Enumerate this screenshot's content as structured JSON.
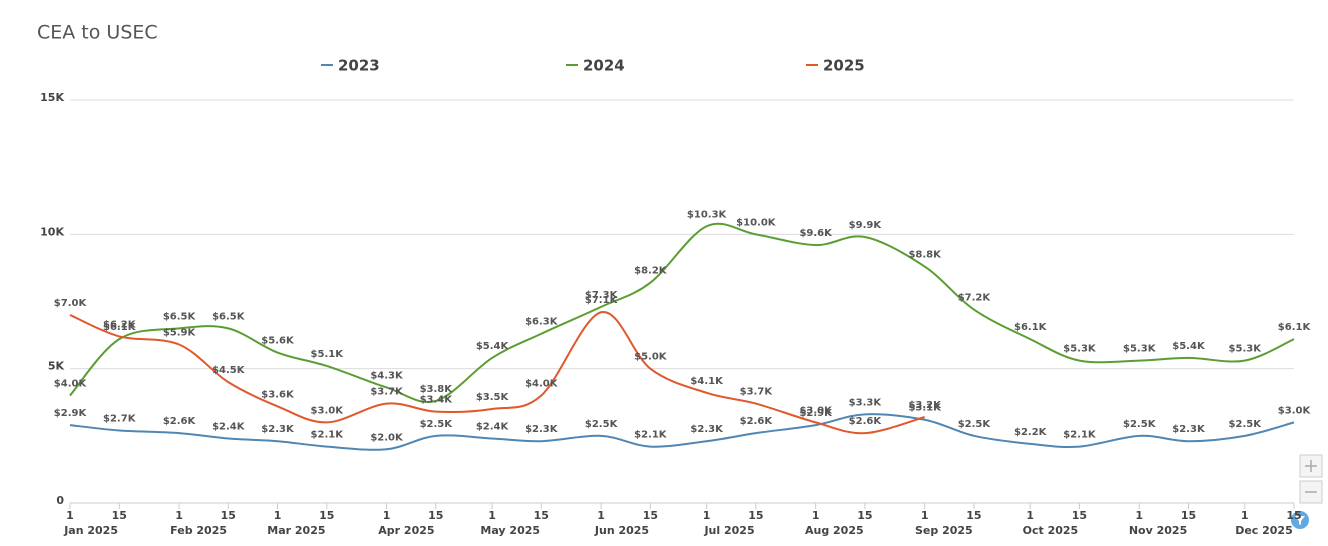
{
  "chart_data": {
    "type": "line",
    "title": "CEA to USEC",
    "x": [
      "2025-01-01",
      "2025-01-15",
      "2025-02-01",
      "2025-02-15",
      "2025-03-01",
      "2025-03-15",
      "2025-04-01",
      "2025-04-15",
      "2025-05-01",
      "2025-05-15",
      "2025-06-01",
      "2025-06-15",
      "2025-07-01",
      "2025-07-15",
      "2025-08-01",
      "2025-08-15",
      "2025-09-01",
      "2025-09-15",
      "2025-10-01",
      "2025-10-15",
      "2025-11-01",
      "2025-11-15",
      "2025-12-01",
      "2025-12-15"
    ],
    "xlim": [
      "2025-01-01",
      "2025-12-15"
    ],
    "xticks": [
      {
        "value": "2025-01-01",
        "label": "1"
      },
      {
        "value": "2025-01-15",
        "label": "15"
      },
      {
        "value": "2025-02-01",
        "label": "1"
      },
      {
        "value": "2025-02-15",
        "label": "15"
      },
      {
        "value": "2025-03-01",
        "label": "1"
      },
      {
        "value": "2025-03-15",
        "label": "15"
      },
      {
        "value": "2025-04-01",
        "label": "1"
      },
      {
        "value": "2025-04-15",
        "label": "15"
      },
      {
        "value": "2025-05-01",
        "label": "1"
      },
      {
        "value": "2025-05-15",
        "label": "15"
      },
      {
        "value": "2025-06-01",
        "label": "1"
      },
      {
        "value": "2025-06-15",
        "label": "15"
      },
      {
        "value": "2025-07-01",
        "label": "1"
      },
      {
        "value": "2025-07-15",
        "label": "15"
      },
      {
        "value": "2025-08-01",
        "label": "1"
      },
      {
        "value": "2025-08-15",
        "label": "15"
      },
      {
        "value": "2025-09-01",
        "label": "1"
      },
      {
        "value": "2025-09-15",
        "label": "15"
      },
      {
        "value": "2025-10-01",
        "label": "1"
      },
      {
        "value": "2025-10-15",
        "label": "15"
      },
      {
        "value": "2025-11-01",
        "label": "1"
      },
      {
        "value": "2025-11-15",
        "label": "15"
      },
      {
        "value": "2025-12-01",
        "label": "1"
      },
      {
        "value": "2025-12-15",
        "label": "15"
      }
    ],
    "x_month_labels": [
      {
        "value": "2025-01-01",
        "label": "Jan 2025"
      },
      {
        "value": "2025-02-01",
        "label": "Feb 2025"
      },
      {
        "value": "2025-03-01",
        "label": "Mar 2025"
      },
      {
        "value": "2025-04-01",
        "label": "Apr 2025"
      },
      {
        "value": "2025-05-01",
        "label": "May 2025"
      },
      {
        "value": "2025-06-01",
        "label": "Jun 2025"
      },
      {
        "value": "2025-07-01",
        "label": "Jul 2025"
      },
      {
        "value": "2025-08-01",
        "label": "Aug 2025"
      },
      {
        "value": "2025-09-01",
        "label": "Sep 2025"
      },
      {
        "value": "2025-10-01",
        "label": "Oct 2025"
      },
      {
        "value": "2025-11-01",
        "label": "Nov 2025"
      },
      {
        "value": "2025-12-01",
        "label": "Dec 2025"
      }
    ],
    "ylim": [
      0,
      15000
    ],
    "yticks": [
      0,
      {
        "value": 5000,
        "label": "5K"
      },
      {
        "value": 10000,
        "label": "10K"
      },
      {
        "value": 15000,
        "label": "15K"
      }
    ],
    "grid": true,
    "series": [
      {
        "name": "2023",
        "color": "#4f86b3",
        "values": [
          2900,
          2700,
          2600,
          2400,
          2300,
          2100,
          2000,
          2500,
          2400,
          2300,
          2500,
          2100,
          2300,
          2600,
          2900,
          3300,
          3100,
          2500,
          2200,
          2100,
          2500,
          2300,
          2500,
          3000
        ],
        "value_labels": [
          "$2.9K",
          "$2.7K",
          "$2.6K",
          "$2.4K",
          "$2.3K",
          "$2.1K",
          "$2.0K",
          "$2.5K",
          "$2.4K",
          "$2.3K",
          "$2.5K",
          "$2.1K",
          "$2.3K",
          "$2.6K",
          "$2.9K",
          "$3.3K",
          "$3.1K",
          "$2.5K",
          "$2.2K",
          "$2.1K",
          "$2.5K",
          "$2.3K",
          "$2.5K",
          "$3.0K"
        ]
      },
      {
        "name": "2024",
        "color": "#5a9d32",
        "values": [
          4000,
          6100,
          6500,
          6500,
          5600,
          5100,
          4300,
          3800,
          5400,
          6300,
          7300,
          8200,
          10300,
          10000,
          9600,
          9900,
          8800,
          7200,
          6100,
          5300,
          5300,
          5400,
          5300,
          6100
        ],
        "value_labels": [
          "$4.0K",
          "$6.1K",
          "$6.5K",
          "$6.5K",
          "$5.6K",
          "$5.1K",
          "$4.3K",
          "$3.8K",
          "$5.4K",
          "$6.3K",
          "$7.3K",
          "$8.2K",
          "$10.3K",
          "$10.0K",
          "$9.6K",
          "$9.9K",
          "$8.8K",
          "$7.2K",
          "$6.1K",
          "$5.3K",
          "$5.3K",
          "$5.4K",
          "$5.3K",
          "$6.1K"
        ]
      },
      {
        "name": "2025",
        "color": "#e0582b",
        "values": [
          7000,
          6200,
          5900,
          4500,
          3600,
          3000,
          3700,
          3400,
          3500,
          4000,
          7100,
          5000,
          4100,
          3700,
          3000,
          2600,
          3200,
          null,
          null,
          null,
          null,
          null,
          null,
          null
        ],
        "value_labels": [
          "$7.0K",
          "$6.2K",
          "$5.9K",
          "$4.5K",
          "$3.6K",
          "$3.0K",
          "$3.7K",
          "$3.4K",
          "$3.5K",
          "$4.0K",
          "$7.1K",
          "$5.0K",
          "$4.1K",
          "$3.7K",
          "$3.0K",
          "$2.6K",
          "$3.2K",
          null,
          null,
          null,
          null,
          null,
          null,
          null
        ]
      }
    ]
  }
}
